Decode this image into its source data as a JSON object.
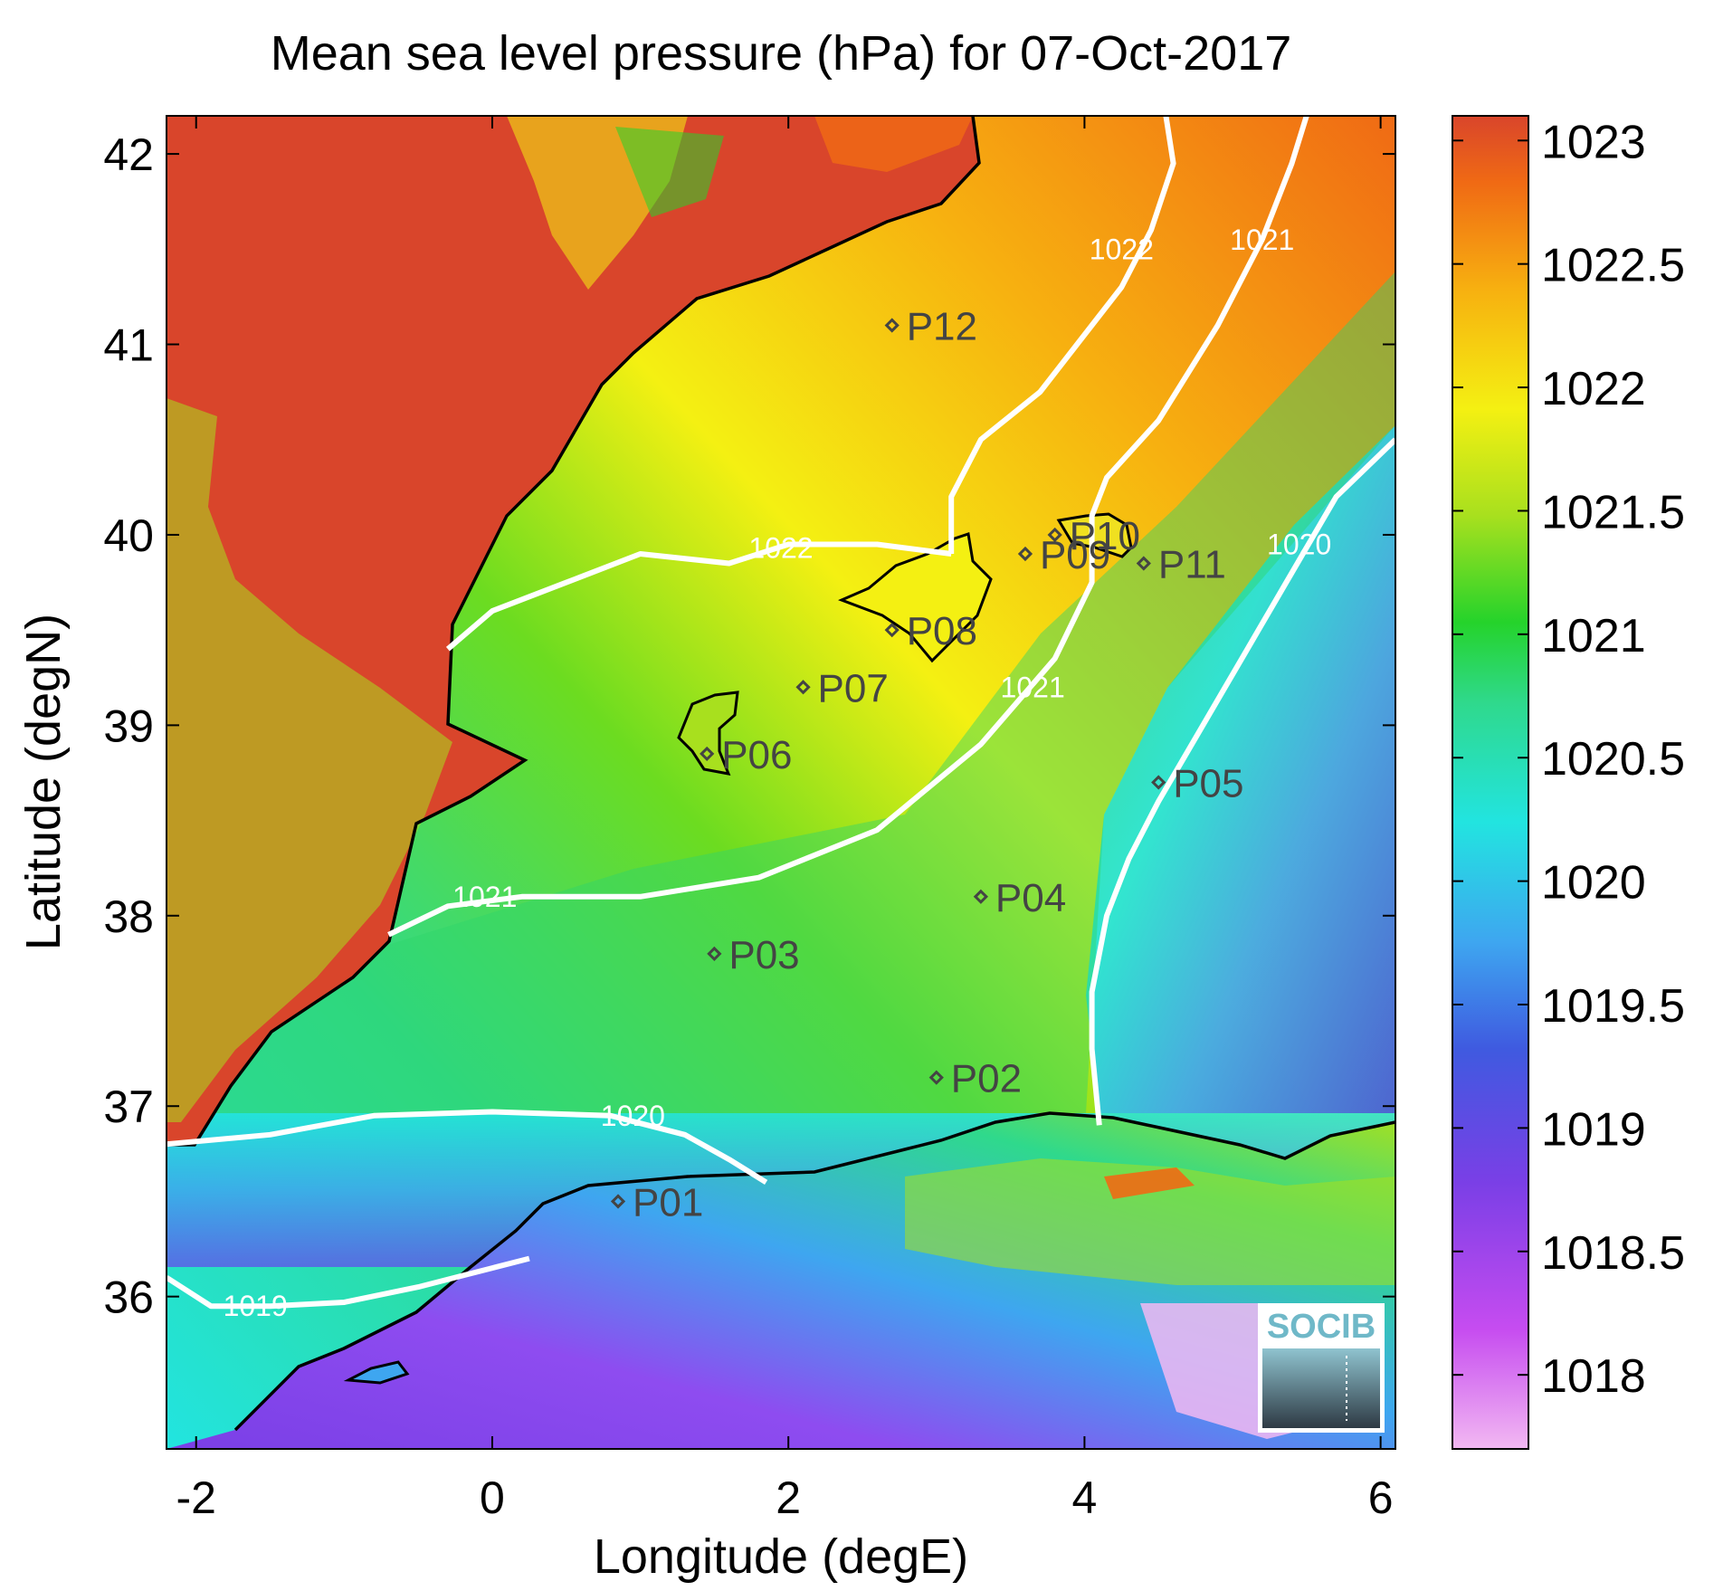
{
  "title": "Mean sea level pressure (hPa) for 07-Oct-2017",
  "xlabel": "Longitude (degE)",
  "ylabel": "Latitude (degN)",
  "x_ticks": [
    "-2",
    "0",
    "2",
    "4",
    "6"
  ],
  "y_ticks": [
    "36",
    "37",
    "38",
    "39",
    "40",
    "41",
    "42"
  ],
  "colorbar_ticks": [
    "1018",
    "1018.5",
    "1019",
    "1019.5",
    "1020",
    "1020.5",
    "1021",
    "1021.5",
    "1022",
    "1022.5",
    "1023"
  ],
  "logo_text": "SOCIB",
  "chart_data": {
    "type": "heatmap",
    "title": "Mean sea level pressure (hPa) for 07-Oct-2017",
    "xlabel": "Longitude (degE)",
    "ylabel": "Latitude (degN)",
    "xlim": [
      -2.2,
      6.1
    ],
    "ylim": [
      35.2,
      42.2
    ],
    "colorbar": {
      "range": [
        1017.7,
        1023.1
      ],
      "ticks": [
        1018,
        1018.5,
        1019,
        1019.5,
        1020,
        1020.5,
        1021,
        1021.5,
        1022,
        1022.5,
        1023
      ]
    },
    "colormap": [
      "#f2b8f2",
      "#c64cf0",
      "#7a3fe6",
      "#3f5ae0",
      "#3ea6f0",
      "#22e4e0",
      "#2fd98c",
      "#25d32b",
      "#a8e01e",
      "#f4f012",
      "#f7b010",
      "#f06a14",
      "#d9452b"
    ],
    "stations": [
      {
        "name": "P01",
        "lon": 0.85,
        "lat": 36.5
      },
      {
        "name": "P02",
        "lon": 3.0,
        "lat": 37.15
      },
      {
        "name": "P03",
        "lon": 1.5,
        "lat": 37.8
      },
      {
        "name": "P04",
        "lon": 3.3,
        "lat": 38.1
      },
      {
        "name": "P05",
        "lon": 4.5,
        "lat": 38.7
      },
      {
        "name": "P06",
        "lon": 1.45,
        "lat": 38.85
      },
      {
        "name": "P07",
        "lon": 2.1,
        "lat": 39.2
      },
      {
        "name": "P08",
        "lon": 2.7,
        "lat": 39.5
      },
      {
        "name": "P09",
        "lon": 3.6,
        "lat": 39.9
      },
      {
        "name": "P10",
        "lon": 3.8,
        "lat": 40.0
      },
      {
        "name": "P11",
        "lon": 4.4,
        "lat": 39.85
      },
      {
        "name": "P12",
        "lon": 2.7,
        "lat": 41.1
      }
    ],
    "contours": [
      {
        "level": "1019",
        "label": "1019",
        "points": [
          [
            -2.2,
            36.1
          ],
          [
            -1.9,
            35.95
          ],
          [
            -1.5,
            35.95
          ],
          [
            -1.0,
            35.97
          ],
          [
            -0.5,
            36.05
          ],
          [
            0.0,
            36.15
          ],
          [
            0.25,
            36.2
          ]
        ]
      },
      {
        "level": "1020",
        "label": "1020",
        "points": [
          [
            -2.2,
            36.8
          ],
          [
            -1.5,
            36.85
          ],
          [
            -0.8,
            36.95
          ],
          [
            0.0,
            36.97
          ],
          [
            0.8,
            36.95
          ],
          [
            1.3,
            36.85
          ],
          [
            1.6,
            36.72
          ],
          [
            1.85,
            36.6
          ]
        ]
      },
      {
        "level": "1021",
        "label": "1021",
        "points": [
          [
            -0.7,
            37.9
          ],
          [
            -0.3,
            38.05
          ],
          [
            0.2,
            38.1
          ],
          [
            1.0,
            38.1
          ],
          [
            1.8,
            38.2
          ],
          [
            2.6,
            38.45
          ],
          [
            3.3,
            38.9
          ],
          [
            3.8,
            39.35
          ],
          [
            4.05,
            39.75
          ],
          [
            4.05,
            40.1
          ],
          [
            4.15,
            40.3
          ],
          [
            4.5,
            40.6
          ],
          [
            4.9,
            41.1
          ],
          [
            5.2,
            41.55
          ],
          [
            5.4,
            41.95
          ],
          [
            5.5,
            42.2
          ]
        ]
      },
      {
        "level": "1020_b",
        "label": "1020",
        "points": [
          [
            4.1,
            36.9
          ],
          [
            4.05,
            37.3
          ],
          [
            4.05,
            37.6
          ],
          [
            4.15,
            38.0
          ],
          [
            4.3,
            38.3
          ],
          [
            4.5,
            38.6
          ],
          [
            4.8,
            39.0
          ],
          [
            5.1,
            39.4
          ],
          [
            5.4,
            39.8
          ],
          [
            5.7,
            40.2
          ],
          [
            6.1,
            40.5
          ]
        ]
      },
      {
        "level": "1022",
        "label": "1022",
        "points": [
          [
            3.1,
            39.9
          ],
          [
            2.6,
            39.95
          ],
          [
            2.0,
            39.95
          ],
          [
            1.6,
            39.85
          ],
          [
            1.0,
            39.9
          ],
          [
            0.5,
            39.75
          ],
          [
            0.0,
            39.6
          ],
          [
            -0.3,
            39.4
          ]
        ]
      },
      {
        "level": "1022_b",
        "label": "1022",
        "points": [
          [
            3.1,
            39.9
          ],
          [
            3.1,
            40.2
          ],
          [
            3.3,
            40.5
          ],
          [
            3.7,
            40.75
          ],
          [
            3.95,
            41.0
          ],
          [
            4.25,
            41.3
          ],
          [
            4.45,
            41.6
          ],
          [
            4.6,
            41.95
          ],
          [
            4.55,
            42.2
          ]
        ]
      }
    ],
    "contour_labels": [
      {
        "text": "1019",
        "lon": -1.6,
        "lat": 35.95
      },
      {
        "text": "1020",
        "lon": 0.95,
        "lat": 36.95
      },
      {
        "text": "1021",
        "lon": -0.05,
        "lat": 38.1
      },
      {
        "text": "1021",
        "lon": 3.65,
        "lat": 39.2
      },
      {
        "text": "1021",
        "lon": 5.2,
        "lat": 41.55
      },
      {
        "text": "1020",
        "lon": 5.45,
        "lat": 39.95
      },
      {
        "text": "1022",
        "lon": 1.95,
        "lat": 39.93
      },
      {
        "text": "1022",
        "lon": 4.25,
        "lat": 41.5
      }
    ]
  }
}
